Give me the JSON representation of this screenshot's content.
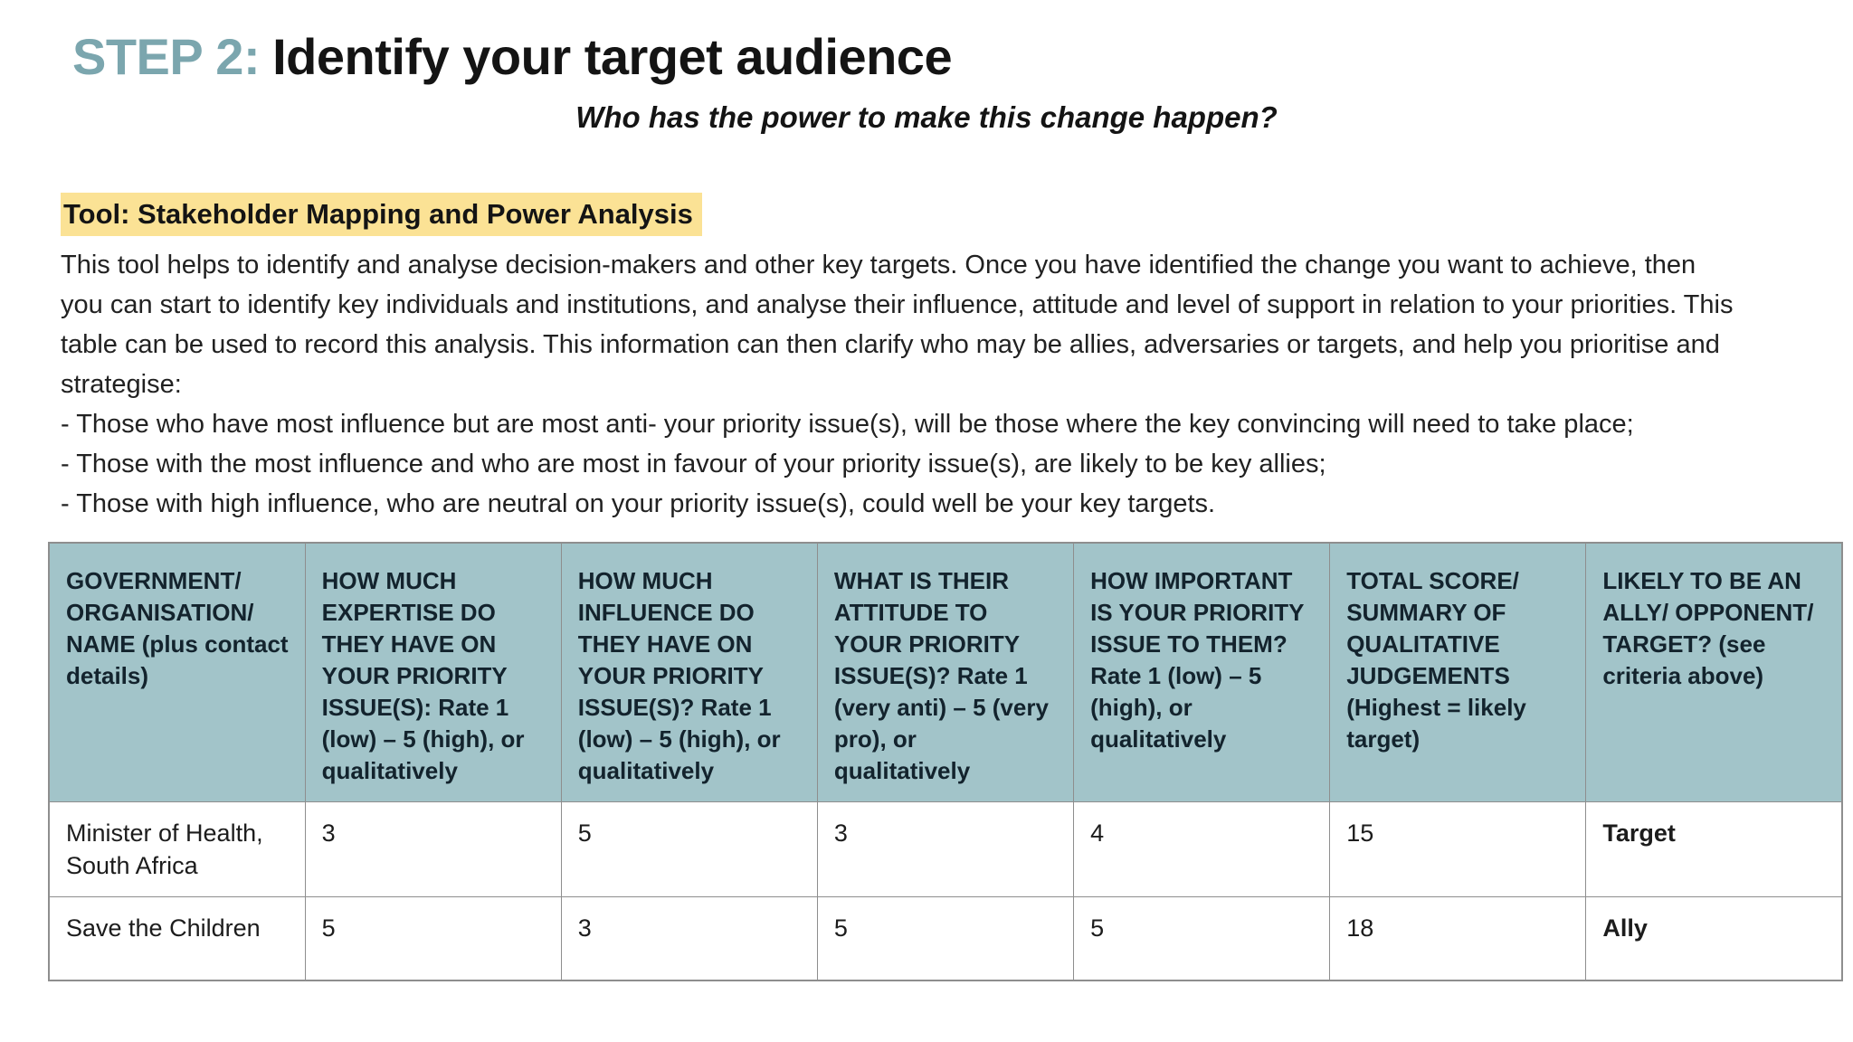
{
  "header": {
    "step_label": "STEP 2:",
    "title": "Identify your target audience",
    "subtitle": "Who has the power to make this change happen?"
  },
  "tool": {
    "heading": "Tool: Stakeholder Mapping and Power Analysis",
    "description": "This tool helps to identify and analyse decision-makers and other key targets. Once you have identified the change you want to achieve, then you can start to identify key individuals and institutions, and analyse their influence, attitude and level of support in relation to your priorities. This table can be used to record this analysis. This information can then clarify who may be allies, adversaries or targets, and help you prioritise and strategise:",
    "bullets": [
      "- Those who have most influence but are most anti- your priority issue(s), will be those where the key convincing will need to take place;",
      "- Those with the most influence and who are most in favour of your priority issue(s), are likely to be key allies;",
      "- Those with high influence, who are neutral on your priority issue(s), could well be your key targets."
    ]
  },
  "colors": {
    "accent_teal": "#7ba6ae",
    "highlight_yellow": "#fbe295",
    "table_header_bg": "#a2c4c9",
    "table_border": "#8e8e8e"
  },
  "table": {
    "headers": [
      "GOVERNMENT/ ORGANISATION/ NAME (plus contact details)",
      "HOW MUCH EXPERTISE DO THEY HAVE ON YOUR PRIORITY ISSUE(S): Rate 1 (low) – 5 (high), or qualitatively",
      "HOW MUCH INFLUENCE DO THEY HAVE ON YOUR PRIORITY ISSUE(S)? Rate 1 (low) – 5 (high), or qualitatively",
      "WHAT IS THEIR ATTITUDE TO YOUR PRIORITY ISSUE(S)? Rate 1 (very anti) – 5 (very pro), or qualitatively",
      "HOW IMPORTANT IS YOUR PRIORITY ISSUE TO THEM? Rate 1 (low) – 5 (high), or qualitatively",
      "TOTAL SCORE/ SUMMARY OF QUALITATIVE JUDGEMENTS (Highest = likely target)",
      "LIKELY TO BE AN ALLY/ OPPONENT/ TARGET? (see criteria above)"
    ],
    "rows": [
      {
        "cells": [
          "Minister of Health, South Africa",
          "3",
          "5",
          "3",
          "4",
          "15",
          "Target"
        ]
      },
      {
        "cells": [
          "Save the Children",
          "5",
          "3",
          "5",
          "5",
          "18",
          "Ally"
        ]
      }
    ]
  }
}
